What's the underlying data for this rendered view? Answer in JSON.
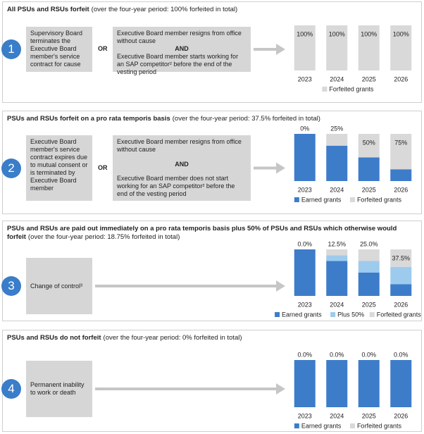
{
  "panels": [
    {
      "number": "1",
      "title": "All PSUs and RSUs forfeit",
      "title_note": "(over the four-year period: 100% forfeited in total)",
      "condition": "Supervisory Board terminates the Executive Board member's service contract for cause",
      "or": "OR",
      "alternative": [
        "Executive Board member resigns from office without cause",
        "AND",
        "Executive Board member starts working for an SAP competitor² before the end of the vesting period"
      ],
      "chart_data": {
        "type": "bar",
        "stacked": true,
        "categories": [
          "2023",
          "2024",
          "2025",
          "2026"
        ],
        "ylim": [
          0,
          100
        ],
        "series": [
          {
            "name": "Forfeited grants",
            "color": "#d9d9d9",
            "values": [
              100,
              100,
              100,
              100
            ],
            "value_labels": [
              "100%",
              "100%",
              "100%",
              "100%"
            ]
          }
        ]
      }
    },
    {
      "number": "2",
      "title": "PSUs and RSUs forfeit on a pro rata temporis basis",
      "title_note": "(over the four-year period: 37.5% forfeited in total)",
      "condition": "Executive Board member's service contract expires due to mutual consent or is terminated by Executive Board member",
      "or": "OR",
      "alternative": [
        "Executive Board member resigns from office without cause",
        "AND",
        "Executive Board member does not start working for an SAP competitor² before the end of the vesting period"
      ],
      "chart_data": {
        "type": "bar",
        "stacked": true,
        "categories": [
          "2023",
          "2024",
          "2025",
          "2026"
        ],
        "ylim": [
          0,
          100
        ],
        "series": [
          {
            "name": "Earned grants",
            "color": "#3d7cc9",
            "values": [
              100,
              75,
              50,
              25
            ]
          },
          {
            "name": "Forfeited grants",
            "color": "#d9d9d9",
            "values": [
              0,
              25,
              50,
              75
            ],
            "value_labels": [
              "0%",
              "25%",
              "50%",
              "75%"
            ]
          }
        ]
      }
    },
    {
      "number": "3",
      "title": "PSUs and RSUs are paid out immediately on a pro rata temporis basis plus 50% of PSUs and RSUs which otherwise would forfeit",
      "title_note": "(over the four-year period: 18.75% forfeited in total)",
      "condition": "Change of control³",
      "chart_data": {
        "type": "bar",
        "stacked": true,
        "categories": [
          "2023",
          "2024",
          "2025",
          "2026"
        ],
        "ylim": [
          0,
          100
        ],
        "series": [
          {
            "name": "Earned grants",
            "color": "#3d7cc9",
            "values": [
              100,
              75,
              50,
              25
            ]
          },
          {
            "name": "Plus 50%",
            "color": "#9dcbee",
            "values": [
              0,
              12.5,
              25,
              37.5
            ]
          },
          {
            "name": "Forfeited grants",
            "color": "#d9d9d9",
            "values": [
              0,
              12.5,
              25,
              37.5
            ],
            "value_labels": [
              "0.0%",
              "12.5%",
              "25.0%",
              "37.5%"
            ]
          }
        ]
      }
    },
    {
      "number": "4",
      "title": "PSUs and RSUs do not forfeit",
      "title_note": "(over the four-year period: 0% forfeited in total)",
      "condition": "Permanent inability to work or death",
      "chart_data": {
        "type": "bar",
        "stacked": true,
        "categories": [
          "2023",
          "2024",
          "2025",
          "2026"
        ],
        "ylim": [
          0,
          100
        ],
        "series": [
          {
            "name": "Earned grants",
            "color": "#3d7cc9",
            "values": [
              100,
              100,
              100,
              100
            ]
          },
          {
            "name": "Forfeited grants",
            "color": "#d9d9d9",
            "values": [
              0,
              0,
              0,
              0
            ],
            "value_labels": [
              "0.0%",
              "0.0%",
              "0.0%",
              "0.0%"
            ]
          }
        ]
      }
    }
  ]
}
